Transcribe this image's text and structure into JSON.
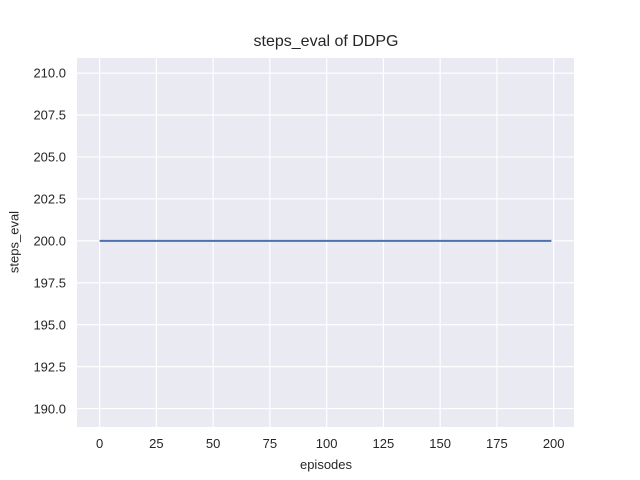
{
  "figure": {
    "title": "steps_eval of DDPG"
  },
  "chart_data": {
    "type": "line",
    "title": "steps_eval of DDPG",
    "xlabel": "episodes",
    "ylabel": "steps_eval",
    "x_ticks": [
      0,
      25,
      50,
      75,
      100,
      125,
      150,
      175,
      200
    ],
    "x_tick_labels": [
      "0",
      "25",
      "50",
      "75",
      "100",
      "125",
      "150",
      "175",
      "200"
    ],
    "y_ticks": [
      190.0,
      192.5,
      195.0,
      197.5,
      200.0,
      202.5,
      205.0,
      207.5,
      210.0
    ],
    "y_tick_labels": [
      "190.0",
      "192.5",
      "195.0",
      "197.5",
      "200.0",
      "202.5",
      "205.0",
      "207.5",
      "210.0"
    ],
    "xlim": [
      -9.95,
      208.95
    ],
    "ylim": [
      188.9,
      210.9
    ],
    "grid": true,
    "legend": null,
    "style": {
      "plot_background": "#eaeaf2",
      "grid_color": "#ffffff",
      "text_color": "#262626",
      "figure_background": "#ffffff"
    },
    "series": [
      {
        "name": "steps_eval",
        "x": [
          0,
          199
        ],
        "y": [
          200.0,
          200.0
        ],
        "color": "#4c72b0",
        "linewidth": 2
      }
    ]
  }
}
